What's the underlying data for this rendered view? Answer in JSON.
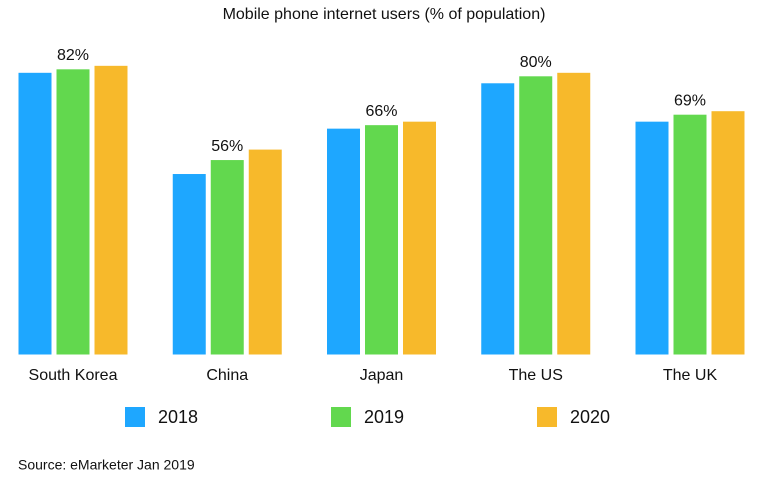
{
  "chart_data": {
    "type": "bar",
    "title": "Mobile phone internet users (% of population)",
    "categories": [
      "South Korea",
      "China",
      "Japan",
      "The US",
      "The UK"
    ],
    "series": [
      {
        "name": "2018",
        "color": "#1ea7ff",
        "values": [
          81,
          52,
          65,
          78,
          67
        ]
      },
      {
        "name": "2019",
        "color": "#62d84e",
        "values": [
          82,
          56,
          66,
          80,
          69
        ],
        "value_labels": [
          "82%",
          "56%",
          "66%",
          "80%",
          "69%"
        ]
      },
      {
        "name": "2020",
        "color": "#f7b92b",
        "values": [
          83,
          59,
          67,
          81,
          70
        ]
      }
    ],
    "source": "Source: eMarketer Jan 2019"
  }
}
